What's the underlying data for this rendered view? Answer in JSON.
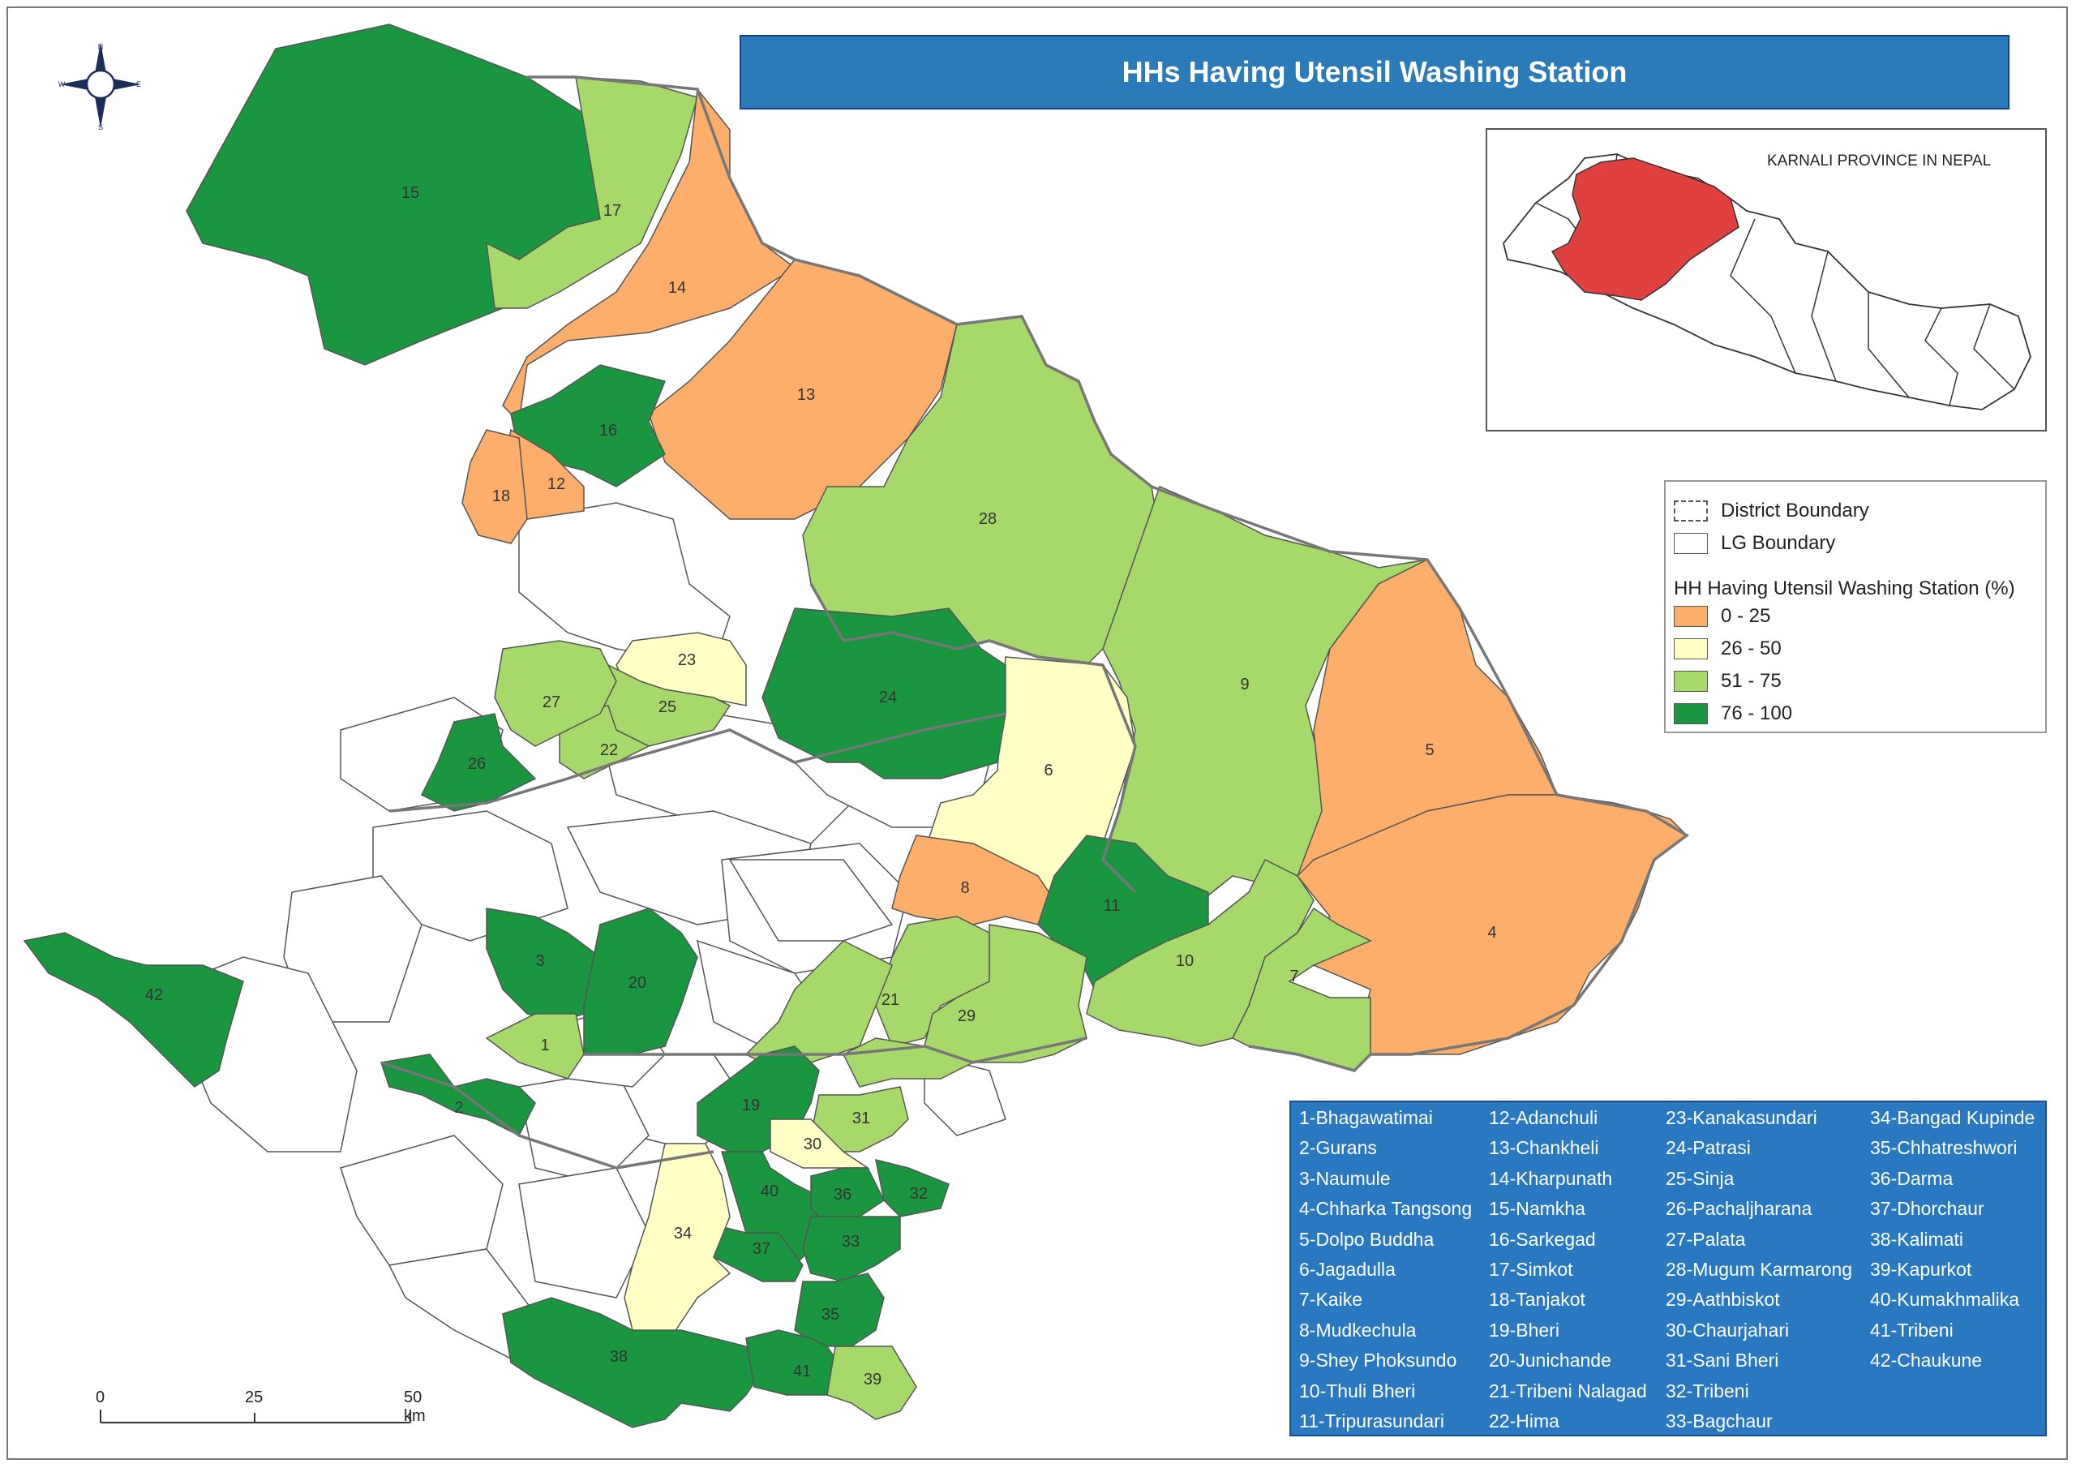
{
  "title": "HHs Having Utensil Washing Station",
  "inset": {
    "label": "KARNALI PROVINCE IN NEPAL",
    "highlight_color": "#e04040"
  },
  "legend": {
    "district_boundary": "District Boundary",
    "lg_boundary": "LG Boundary",
    "heading": "HH Having Utensil Washing Station (%)",
    "classes": [
      {
        "label": "0 - 25",
        "color": "#fdae6b"
      },
      {
        "label": "26 - 50",
        "color": "#ffffc6"
      },
      {
        "label": "51 - 75",
        "color": "#a6d96a"
      },
      {
        "label": "76 - 100",
        "color": "#1a9641"
      }
    ]
  },
  "compass": {
    "n": "N",
    "s": "S",
    "e": "E",
    "w": "W"
  },
  "scale": {
    "t0": "0",
    "t1": "25",
    "t2": "50 km"
  },
  "map_labels": [
    "1",
    "2",
    "3",
    "4",
    "5",
    "6",
    "7",
    "8",
    "9",
    "10",
    "11",
    "12",
    "13",
    "14",
    "15",
    "16",
    "17",
    "18",
    "19",
    "20",
    "21",
    "22",
    "23",
    "24",
    "25",
    "26",
    "27",
    "28",
    "29",
    "30",
    "31",
    "32",
    "33",
    "34",
    "35",
    "36",
    "37",
    "38",
    "39",
    "40",
    "41",
    "42"
  ],
  "municipalities": {
    "col1": [
      "1-Bhagawatimai",
      "2-Gurans",
      "3-Naumule",
      "4-Chharka Tangsong",
      "5-Dolpo Buddha",
      "6-Jagadulla",
      "7-Kaike",
      "8-Mudkechula",
      "9-Shey Phoksundo",
      "10-Thuli Bheri",
      "11-Tripurasundari"
    ],
    "col2": [
      "12-Adanchuli",
      "13-Chankheli",
      "14-Kharpunath",
      "15-Namkha",
      "16-Sarkegad",
      "17-Simkot",
      "18-Tanjakot",
      "19-Bheri",
      "20-Junichande",
      "21-Tribeni Nalagad",
      "22-Hima"
    ],
    "col3": [
      "23-Kanakasundari",
      "24-Patrasi",
      "25-Sinja",
      "26-Pachaljharana",
      "27-Palata",
      "28-Mugum Karmarong",
      "29-Aathbiskot",
      "30-Chaurjahari",
      "31-Sani Bheri",
      "32-Tribeni",
      "33-Bagchaur"
    ],
    "col4": [
      "34-Bangad Kupinde",
      "35-Chhatreshwori",
      "36-Darma",
      "37-Dhorchaur",
      "38-Kalimati",
      "39-Kapurkot",
      "40-Kumakhmalika",
      "41-Tribeni",
      "42-Chaukune"
    ]
  }
}
